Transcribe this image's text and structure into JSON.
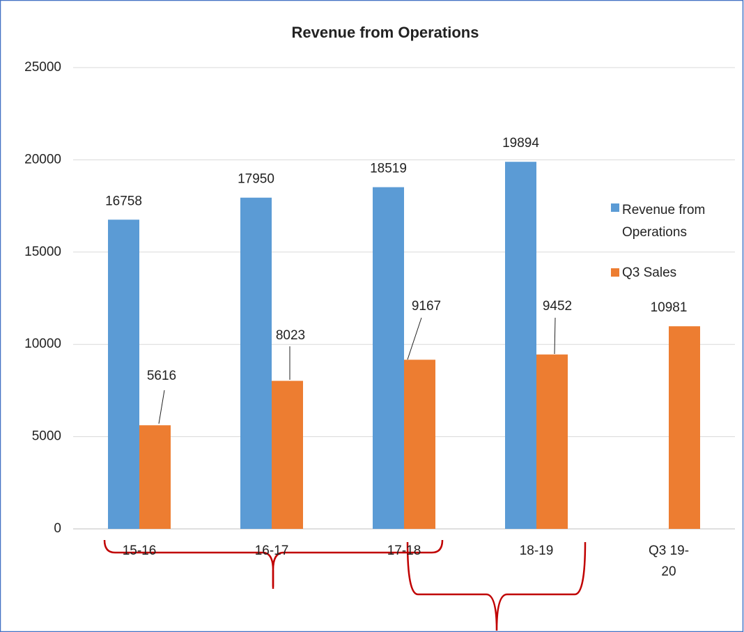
{
  "chart_data": {
    "type": "bar",
    "title": "Revenue from Operations",
    "categories": [
      "15-16",
      "16-17",
      "17-18",
      "18-19",
      "Q3 19-20"
    ],
    "series": [
      {
        "name": "Revenue from Operations",
        "color": "#5b9bd5",
        "values": [
          16758,
          17950,
          18519,
          19894,
          null
        ]
      },
      {
        "name": "Q3 Sales",
        "color": "#ed7d31",
        "values": [
          5616,
          8023,
          9167,
          9452,
          10981
        ]
      }
    ],
    "ylim": [
      0,
      25000
    ],
    "yticks": [
      0,
      5000,
      10000,
      15000,
      20000,
      25000
    ],
    "grid": true,
    "legend": "right"
  }
}
